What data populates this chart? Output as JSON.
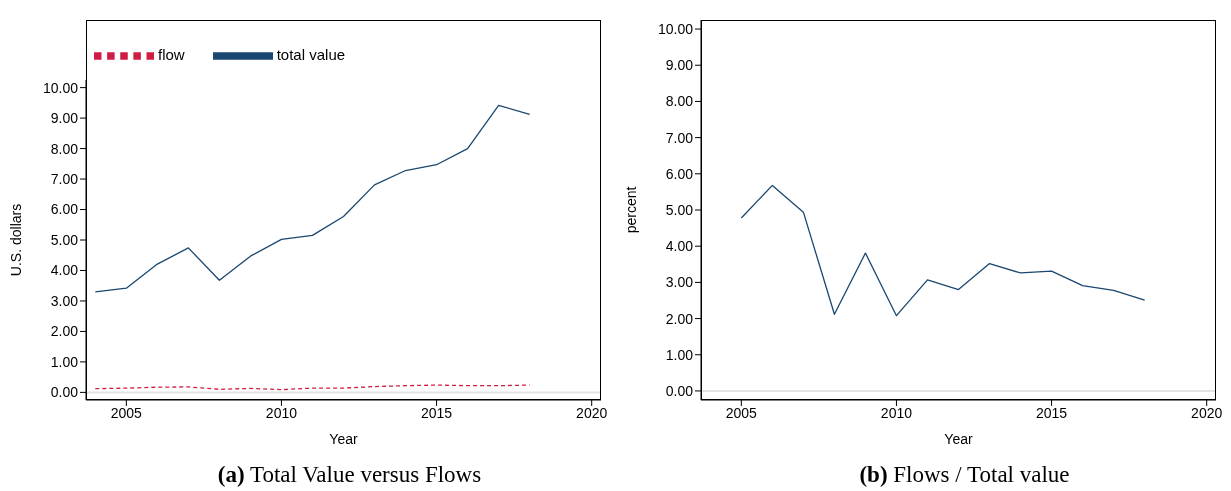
{
  "chart_data": [
    {
      "type": "line",
      "title": "(a) Total Value versus Flows",
      "xlabel": "Year",
      "ylabel": "U.S. dollars",
      "x": [
        2004,
        2005,
        2006,
        2007,
        2008,
        2009,
        2010,
        2011,
        2012,
        2013,
        2014,
        2015,
        2016,
        2017,
        2018
      ],
      "series": [
        {
          "name": "total value",
          "color": "#1a476f",
          "line_style": "solid",
          "values": [
            3.3,
            3.42,
            4.21,
            4.74,
            3.68,
            4.47,
            5.02,
            5.15,
            5.77,
            6.81,
            7.28,
            7.47,
            8.0,
            9.42,
            9.12
          ]
        },
        {
          "name": "flow",
          "color": "#d01c44",
          "line_style": "dashed",
          "values": [
            0.12,
            0.14,
            0.17,
            0.18,
            0.1,
            0.13,
            0.09,
            0.14,
            0.14,
            0.19,
            0.22,
            0.24,
            0.22,
            0.22,
            0.24
          ]
        }
      ],
      "xlim": [
        2003.7,
        2020.3
      ],
      "xticks": [
        2005,
        2010,
        2015,
        2020
      ],
      "ylim": [
        -0.25,
        10.25
      ],
      "yticks": [
        {
          "value": 0,
          "label": "0.00"
        },
        {
          "value": 1,
          "label": "1.00"
        },
        {
          "value": 2,
          "label": "2.00"
        },
        {
          "value": 3,
          "label": "3.00"
        },
        {
          "value": 4,
          "label": "4.00"
        },
        {
          "value": 5,
          "label": "5.00"
        },
        {
          "value": 6,
          "label": "6.00"
        },
        {
          "value": 7,
          "label": "7.00"
        },
        {
          "value": 8,
          "label": "8.00"
        },
        {
          "value": 9,
          "label": "9.00"
        },
        {
          "value": 10,
          "label": "10.00"
        }
      ],
      "ref_lines": [
        {
          "axis": "y",
          "value": 0,
          "color": "#e3e3e3"
        }
      ],
      "legend": "top left",
      "grid": false,
      "marker": "none"
    },
    {
      "type": "line",
      "title": "(b) Flows / Total value",
      "xlabel": "Year",
      "ylabel": "percent",
      "x": [
        2005,
        2006,
        2007,
        2008,
        2009,
        2010,
        2011,
        2012,
        2013,
        2014,
        2015,
        2016,
        2017,
        2018
      ],
      "series": [
        {
          "color": "#1a476f",
          "values": [
            4.78,
            5.68,
            4.94,
            2.12,
            3.81,
            2.08,
            3.07,
            2.8,
            3.52,
            3.26,
            3.31,
            2.91,
            2.78,
            2.51
          ]
        }
      ],
      "xlim": [
        2003.7,
        2020.3
      ],
      "xticks": [
        2005,
        2010,
        2015,
        2020
      ],
      "ylim": [
        -0.25,
        10.25
      ],
      "yticks": [
        {
          "value": 0,
          "label": "0.00"
        },
        {
          "value": 1,
          "label": "1.00"
        },
        {
          "value": 2,
          "label": "2.00"
        },
        {
          "value": 3,
          "label": "3.00"
        },
        {
          "value": 4,
          "label": "4.00"
        },
        {
          "value": 5,
          "label": "5.00"
        },
        {
          "value": 6,
          "label": "6.00"
        },
        {
          "value": 7,
          "label": "7.00"
        },
        {
          "value": 8,
          "label": "8.00"
        },
        {
          "value": 9,
          "label": "9.00"
        },
        {
          "value": 10,
          "label": "10.00"
        }
      ],
      "ref_lines": [
        {
          "axis": "y",
          "value": 0,
          "color": "#e3e3e3"
        }
      ],
      "legend": false,
      "grid": false,
      "marker": "none"
    }
  ]
}
